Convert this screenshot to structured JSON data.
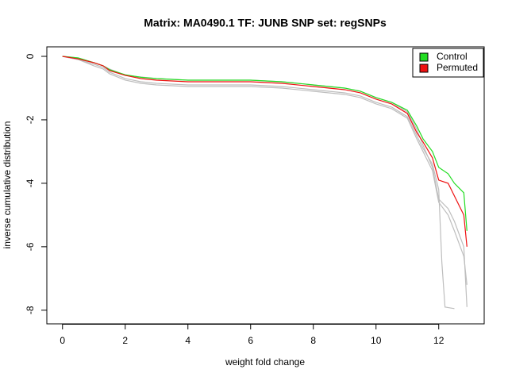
{
  "chart_data": {
    "type": "line",
    "title": "Matrix: MA0490.1 TF: JUNB SNP set: regSNPs",
    "x_label": "weight fold change",
    "y_label": "inverse cumulative distribution",
    "xlim": [
      -0.5,
      13.45
    ],
    "ylim": [
      -8.43,
      0.3
    ],
    "xticks": [
      0,
      2,
      4,
      6,
      8,
      10,
      12
    ],
    "yticks": [
      0,
      -2,
      -4,
      -6,
      -8
    ],
    "legend": "top-right",
    "series": [
      {
        "name": null,
        "color": "#bebebe",
        "x": [
          0,
          0.5,
          1,
          1.3,
          1.5,
          2,
          2.5,
          3,
          4,
          5,
          6,
          7,
          8,
          9,
          9.5,
          10,
          10.5,
          11,
          11.3,
          11.5,
          11.8,
          12,
          12.1,
          12.2,
          12.5
        ],
        "values": [
          0,
          -0.1,
          -0.25,
          -0.35,
          -0.5,
          -0.7,
          -0.8,
          -0.85,
          -0.9,
          -0.9,
          -0.9,
          -0.95,
          -1.05,
          -1.15,
          -1.25,
          -1.45,
          -1.6,
          -1.9,
          -2.5,
          -2.9,
          -3.4,
          -4.2,
          -6.5,
          -7.9,
          -7.95
        ]
      },
      {
        "name": null,
        "color": "#bebebe",
        "x": [
          0,
          0.5,
          1,
          1.3,
          1.5,
          2,
          2.5,
          3,
          4,
          5,
          6,
          7,
          8,
          9,
          9.5,
          10,
          10.5,
          11,
          11.3,
          11.5,
          11.8,
          12,
          12.3,
          12.5,
          12.8,
          12.9
        ],
        "values": [
          0,
          -0.05,
          -0.2,
          -0.3,
          -0.4,
          -0.6,
          -0.65,
          -0.7,
          -0.75,
          -0.75,
          -0.75,
          -0.8,
          -0.9,
          -1.0,
          -1.1,
          -1.3,
          -1.45,
          -1.75,
          -2.3,
          -2.8,
          -3.5,
          -4.5,
          -4.8,
          -5.2,
          -6.0,
          -7.9
        ]
      },
      {
        "name": null,
        "color": "#bebebe",
        "x": [
          0,
          0.5,
          1,
          1.3,
          1.5,
          2,
          2.5,
          3,
          4,
          5,
          6,
          7,
          8,
          9,
          9.5,
          10,
          10.5,
          11,
          11.3,
          11.5,
          11.8,
          12,
          12.3,
          12.5,
          12.8,
          12.9
        ],
        "values": [
          0,
          -0.1,
          -0.3,
          -0.4,
          -0.55,
          -0.75,
          -0.85,
          -0.9,
          -0.95,
          -0.95,
          -0.95,
          -1.0,
          -1.1,
          -1.2,
          -1.3,
          -1.5,
          -1.65,
          -1.95,
          -2.6,
          -3.0,
          -3.6,
          -4.6,
          -5.0,
          -5.5,
          -6.3,
          -7.2
        ]
      },
      {
        "name": "Control",
        "color": "#22dd22",
        "x": [
          0,
          0.5,
          1,
          1.3,
          1.5,
          2,
          2.5,
          3,
          4,
          5,
          6,
          7,
          8,
          9,
          9.5,
          10,
          10.5,
          11,
          11.3,
          11.5,
          11.8,
          12,
          12.3,
          12.5,
          12.8,
          12.9
        ],
        "values": [
          0,
          -0.05,
          -0.2,
          -0.3,
          -0.42,
          -0.58,
          -0.66,
          -0.7,
          -0.75,
          -0.75,
          -0.75,
          -0.8,
          -0.9,
          -1.0,
          -1.1,
          -1.3,
          -1.45,
          -1.7,
          -2.2,
          -2.6,
          -3.0,
          -3.5,
          -3.7,
          -4.0,
          -4.3,
          -5.5
        ]
      },
      {
        "name": "Permuted",
        "color": "#ee1111",
        "x": [
          0,
          0.5,
          1,
          1.3,
          1.5,
          2,
          2.5,
          3,
          4,
          5,
          6,
          7,
          8,
          9,
          9.5,
          10,
          10.5,
          11,
          11.3,
          11.5,
          11.8,
          12,
          12.3,
          12.5,
          12.8,
          12.9
        ],
        "values": [
          0,
          -0.08,
          -0.2,
          -0.3,
          -0.45,
          -0.6,
          -0.7,
          -0.75,
          -0.8,
          -0.8,
          -0.8,
          -0.85,
          -0.95,
          -1.05,
          -1.15,
          -1.35,
          -1.5,
          -1.8,
          -2.4,
          -2.7,
          -3.2,
          -3.9,
          -4.0,
          -4.4,
          -5.0,
          -6.0
        ]
      }
    ]
  }
}
